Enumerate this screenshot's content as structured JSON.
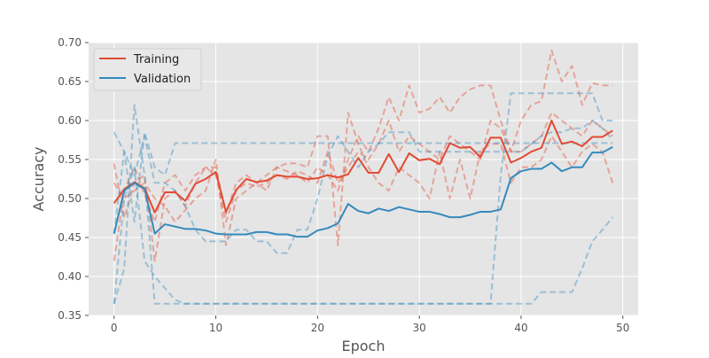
{
  "chart_data": {
    "type": "line",
    "title": "",
    "xlabel": "Epoch",
    "ylabel": "Accuracy",
    "xlim": [
      -2.5,
      51.5
    ],
    "ylim": [
      0.35,
      0.7
    ],
    "xticks": [
      0,
      10,
      20,
      30,
      40,
      50
    ],
    "xtick_labels": [
      "0",
      "10",
      "20",
      "30",
      "40",
      "50"
    ],
    "yticks": [
      0.35,
      0.4,
      0.45,
      0.5,
      0.55,
      0.6,
      0.65,
      0.7
    ],
    "ytick_labels": [
      "0.35",
      "0.40",
      "0.45",
      "0.50",
      "0.55",
      "0.60",
      "0.65",
      "0.70"
    ],
    "grid": true,
    "legend_position": "top-left",
    "x": [
      0,
      1,
      2,
      3,
      4,
      5,
      6,
      7,
      8,
      9,
      10,
      11,
      12,
      13,
      14,
      15,
      16,
      17,
      18,
      19,
      20,
      21,
      22,
      23,
      24,
      25,
      26,
      27,
      28,
      29,
      30,
      31,
      32,
      33,
      34,
      35,
      36,
      37,
      38,
      39,
      40,
      41,
      42,
      43,
      44,
      45,
      46,
      47,
      48,
      49
    ],
    "series": [
      {
        "name": "Training",
        "color": "#e24a33",
        "style": "solid",
        "values": [
          0.494,
          0.512,
          0.521,
          0.513,
          0.482,
          0.508,
          0.508,
          0.497,
          0.519,
          0.525,
          0.534,
          0.483,
          0.511,
          0.525,
          0.521,
          0.523,
          0.53,
          0.528,
          0.528,
          0.525,
          0.526,
          0.53,
          0.527,
          0.531,
          0.552,
          0.533,
          0.533,
          0.557,
          0.534,
          0.558,
          0.549,
          0.551,
          0.544,
          0.571,
          0.565,
          0.566,
          0.553,
          0.578,
          0.578,
          0.546,
          0.552,
          0.56,
          0.565,
          0.6,
          0.57,
          0.573,
          0.567,
          0.579,
          0.579,
          0.587
        ]
      },
      {
        "name": "Validation",
        "color": "#348abd",
        "style": "solid",
        "values": [
          0.455,
          0.51,
          0.52,
          0.512,
          0.455,
          0.467,
          0.464,
          0.461,
          0.461,
          0.459,
          0.455,
          0.454,
          0.454,
          0.454,
          0.457,
          0.457,
          0.454,
          0.454,
          0.451,
          0.451,
          0.459,
          0.462,
          0.468,
          0.493,
          0.484,
          0.481,
          0.487,
          0.484,
          0.489,
          0.486,
          0.483,
          0.483,
          0.48,
          0.476,
          0.476,
          0.479,
          0.483,
          0.483,
          0.486,
          0.526,
          0.535,
          0.538,
          0.538,
          0.546,
          0.535,
          0.54,
          0.54,
          0.559,
          0.559,
          0.566
        ]
      },
      {
        "color": "#e24a33",
        "style": "dashed",
        "values": [
          0.545,
          0.475,
          0.52,
          0.53,
          0.42,
          0.5,
          0.51,
          0.49,
          0.52,
          0.54,
          0.53,
          0.47,
          0.51,
          0.52,
          0.515,
          0.52,
          0.53,
          0.525,
          0.535,
          0.53,
          0.52,
          0.56,
          0.52,
          0.54,
          0.56,
          0.55,
          0.57,
          0.6,
          0.56,
          0.58,
          0.57,
          0.56,
          0.55,
          0.58,
          0.57,
          0.56,
          0.55,
          0.6,
          0.59,
          0.56,
          0.56,
          0.57,
          0.58,
          0.61,
          0.6,
          0.59,
          0.58,
          0.6,
          0.59,
          0.58
        ]
      },
      {
        "color": "#e24a33",
        "style": "dashed",
        "values": [
          0.42,
          0.51,
          0.54,
          0.505,
          0.47,
          0.52,
          0.53,
          0.51,
          0.53,
          0.54,
          0.54,
          0.48,
          0.52,
          0.53,
          0.52,
          0.51,
          0.54,
          0.535,
          0.53,
          0.52,
          0.54,
          0.53,
          0.51,
          0.55,
          0.58,
          0.56,
          0.59,
          0.63,
          0.6,
          0.645,
          0.61,
          0.615,
          0.63,
          0.61,
          0.63,
          0.64,
          0.645,
          0.645,
          0.6,
          0.56,
          0.6,
          0.62,
          0.625,
          0.69,
          0.65,
          0.67,
          0.62,
          0.648,
          0.645,
          0.645
        ]
      },
      {
        "color": "#e24a33",
        "style": "dashed",
        "values": [
          0.52,
          0.5,
          0.51,
          0.52,
          0.5,
          0.49,
          0.47,
          0.485,
          0.5,
          0.51,
          0.55,
          0.44,
          0.5,
          0.51,
          0.52,
          0.53,
          0.54,
          0.545,
          0.545,
          0.54,
          0.58,
          0.58,
          0.44,
          0.61,
          0.57,
          0.54,
          0.52,
          0.51,
          0.54,
          0.53,
          0.52,
          0.5,
          0.56,
          0.5,
          0.55,
          0.5,
          0.56,
          0.57,
          0.57,
          0.52,
          0.54,
          0.54,
          0.55,
          0.58,
          0.56,
          0.54,
          0.56,
          0.57,
          0.56,
          0.52
        ]
      },
      {
        "color": "#348abd",
        "style": "dashed",
        "values": [
          0.585,
          0.56,
          0.47,
          0.585,
          0.54,
          0.53,
          0.571,
          0.571,
          0.571,
          0.571,
          0.571,
          0.571,
          0.571,
          0.571,
          0.571,
          0.571,
          0.571,
          0.571,
          0.571,
          0.571,
          0.571,
          0.571,
          0.571,
          0.571,
          0.571,
          0.571,
          0.571,
          0.571,
          0.571,
          0.571,
          0.571,
          0.571,
          0.571,
          0.571,
          0.571,
          0.571,
          0.571,
          0.571,
          0.571,
          0.571,
          0.571,
          0.571,
          0.571,
          0.571,
          0.571,
          0.571,
          0.571,
          0.571,
          0.571,
          0.571
        ]
      },
      {
        "color": "#348abd",
        "style": "dashed",
        "values": [
          0.365,
          0.41,
          0.62,
          0.53,
          0.365,
          0.365,
          0.365,
          0.365,
          0.365,
          0.365,
          0.365,
          0.365,
          0.365,
          0.365,
          0.365,
          0.365,
          0.365,
          0.365,
          0.365,
          0.365,
          0.365,
          0.365,
          0.365,
          0.365,
          0.365,
          0.365,
          0.365,
          0.365,
          0.365,
          0.365,
          0.365,
          0.365,
          0.365,
          0.365,
          0.365,
          0.365,
          0.365,
          0.365,
          0.53,
          0.635,
          0.635,
          0.635,
          0.635,
          0.635,
          0.635,
          0.635,
          0.635,
          0.635,
          0.6,
          0.6
        ]
      },
      {
        "color": "#348abd",
        "style": "dashed",
        "values": [
          0.365,
          0.5,
          0.54,
          0.42,
          0.4,
          0.385,
          0.37,
          0.365,
          0.365,
          0.365,
          0.365,
          0.365,
          0.365,
          0.365,
          0.365,
          0.365,
          0.365,
          0.365,
          0.365,
          0.365,
          0.365,
          0.365,
          0.365,
          0.365,
          0.365,
          0.365,
          0.365,
          0.365,
          0.365,
          0.365,
          0.365,
          0.365,
          0.365,
          0.365,
          0.365,
          0.365,
          0.365,
          0.365,
          0.365,
          0.365,
          0.365,
          0.365,
          0.38,
          0.38,
          0.38,
          0.38,
          0.41,
          0.445,
          0.46,
          0.476
        ]
      },
      {
        "color": "#348abd",
        "style": "dashed",
        "values": [
          0.455,
          0.56,
          0.53,
          0.58,
          0.52,
          0.52,
          0.51,
          0.49,
          0.46,
          0.445,
          0.445,
          0.445,
          0.46,
          0.46,
          0.445,
          0.445,
          0.43,
          0.43,
          0.46,
          0.46,
          0.5,
          0.555,
          0.58,
          0.56,
          0.54,
          0.56,
          0.57,
          0.585,
          0.585,
          0.585,
          0.56,
          0.56,
          0.56,
          0.56,
          0.56,
          0.56,
          0.56,
          0.56,
          0.56,
          0.56,
          0.56,
          0.57,
          0.58,
          0.585,
          0.585,
          0.59,
          0.59,
          0.6,
          0.59,
          0.575
        ]
      }
    ]
  }
}
